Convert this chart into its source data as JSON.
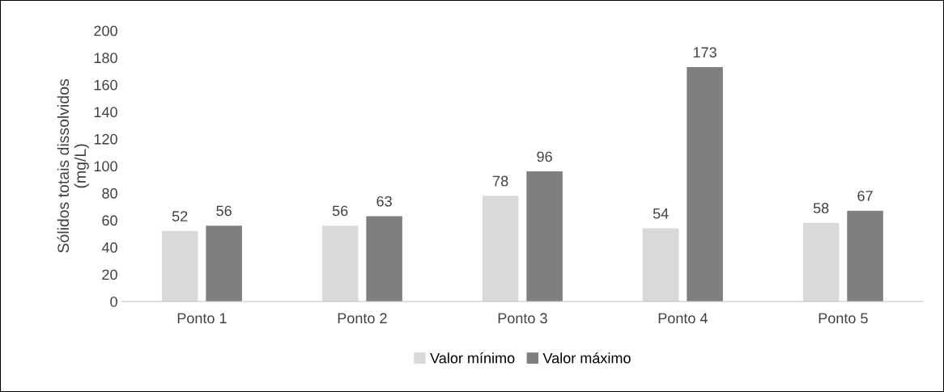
{
  "chart_data": {
    "type": "bar",
    "ylabel": "Sólidos totais dissolvidos\n(mg/L)",
    "categories": [
      "Ponto 1",
      "Ponto 2",
      "Ponto 3",
      "Ponto 4",
      "Ponto 5"
    ],
    "series": [
      {
        "name": "Valor mínimo",
        "color": "#d9d9d9",
        "values": [
          52,
          56,
          78,
          54,
          58
        ]
      },
      {
        "name": "Valor máximo",
        "color": "#7f7f7f",
        "values": [
          56,
          63,
          96,
          173,
          67
        ]
      }
    ],
    "ylim": [
      0,
      200
    ],
    "yticks": [
      0,
      20,
      40,
      60,
      80,
      100,
      120,
      140,
      160,
      180,
      200
    ],
    "data_labels": true,
    "grid": false,
    "legend": "bottom"
  }
}
